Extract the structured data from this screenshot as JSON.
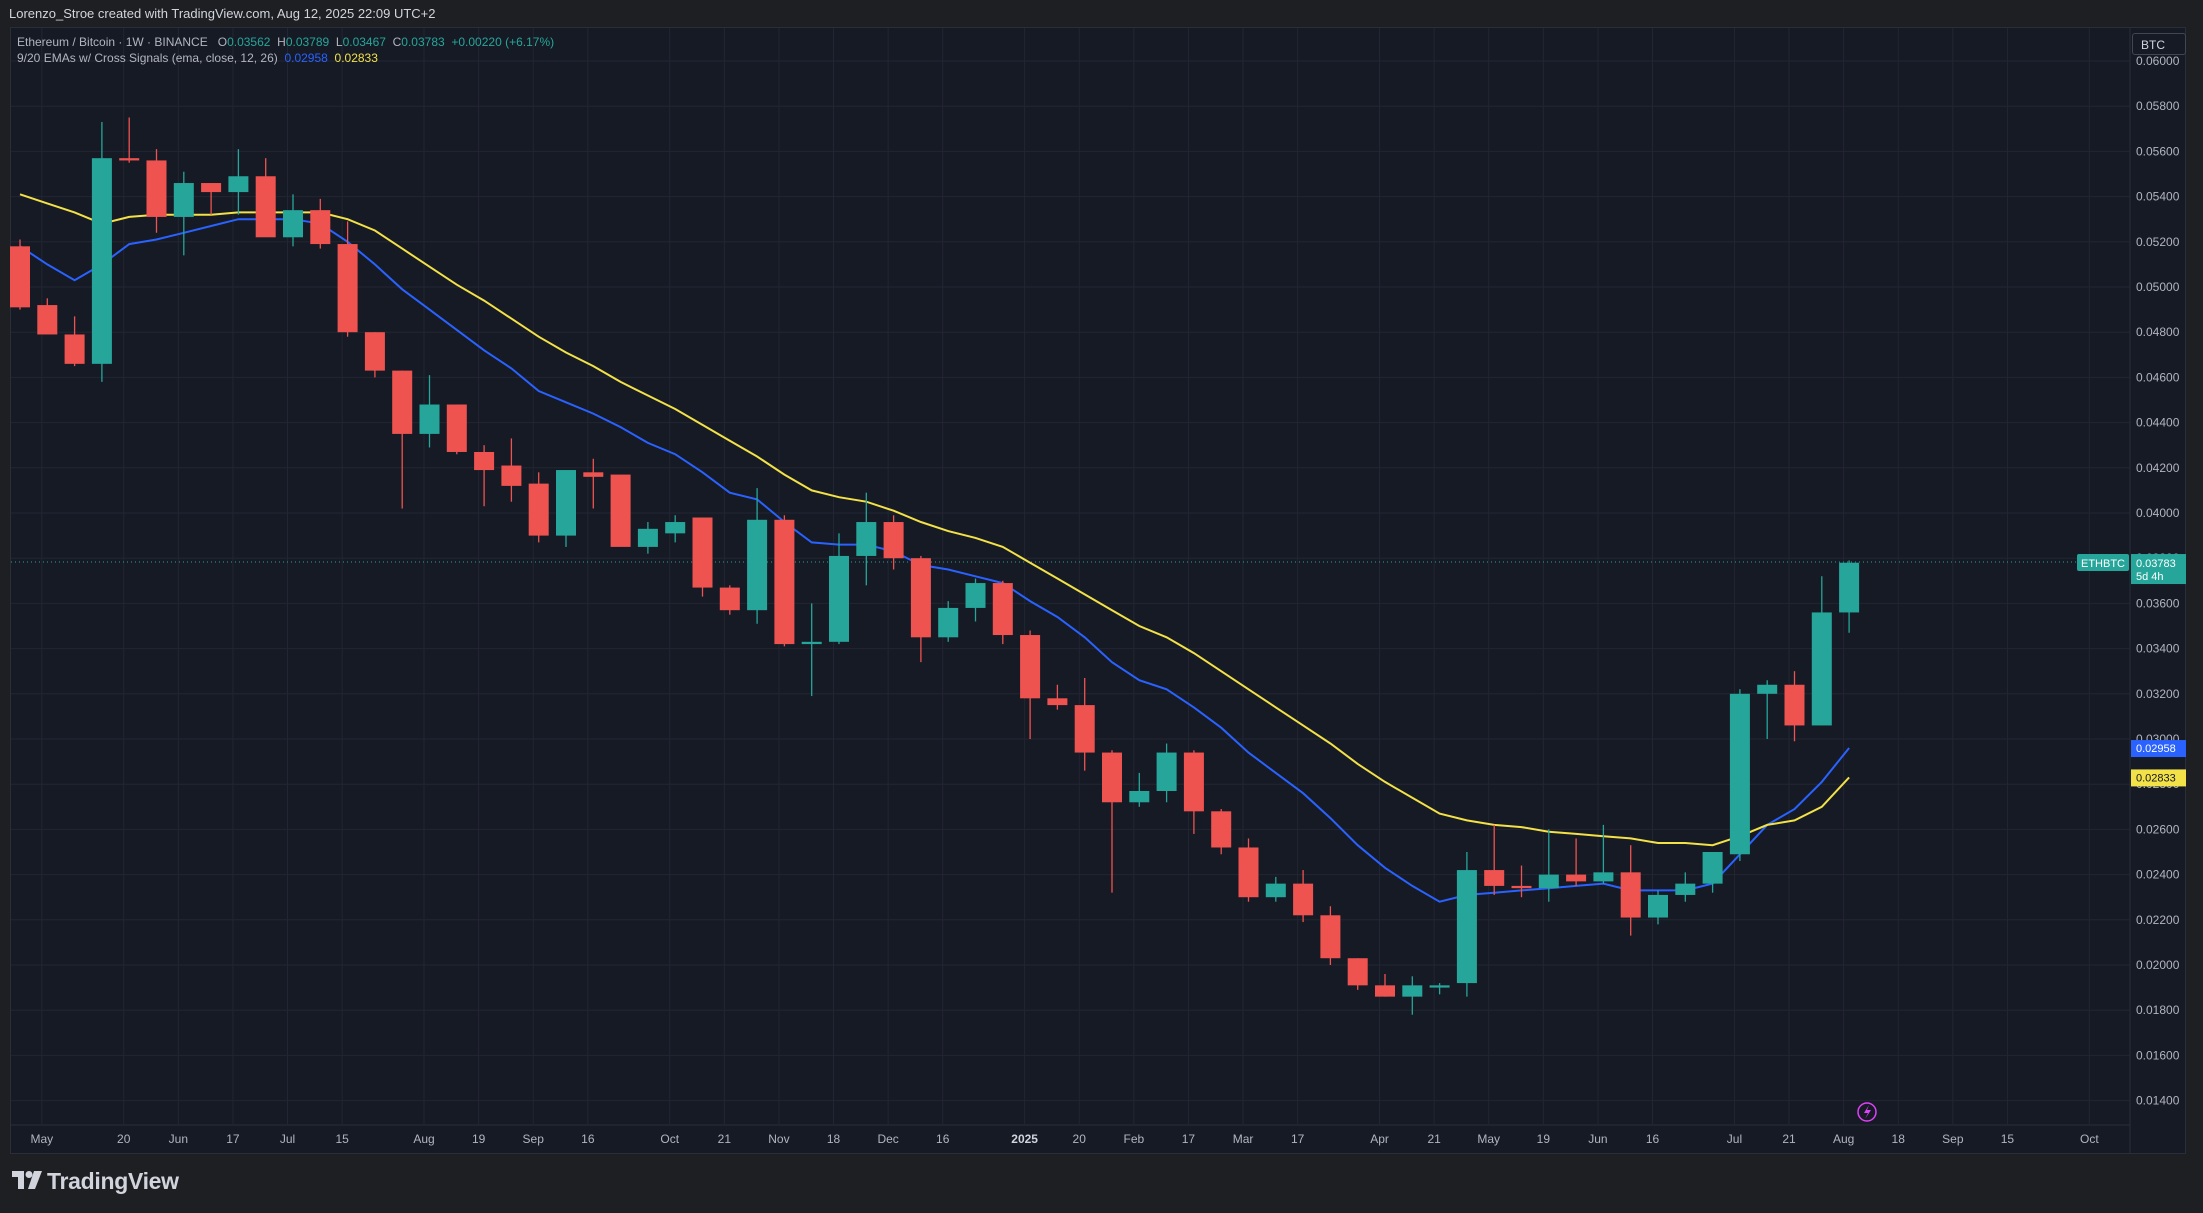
{
  "header": {
    "caption": "Lorenzo_Stroe created with TradingView.com, Aug 12, 2025 22:09 UTC+2"
  },
  "legend": {
    "symbol": "Ethereum / Bitcoin · 1W · BINANCE",
    "o_label": "O",
    "o_value": "0.03562",
    "h_label": "H",
    "h_value": "0.03789",
    "l_label": "L",
    "l_value": "0.03467",
    "c_label": "C",
    "c_value": "0.03783",
    "change": "+0.00220 (+6.17%)",
    "indicator": "9/20 EMAs w/ Cross Signals (ema, close, 12, 26)",
    "ema_fast_value": "0.02958",
    "ema_slow_value": "0.02833"
  },
  "currency_button": "BTC",
  "price_tags": {
    "symbol_tag": "ETHBTC",
    "last_price": "0.03783",
    "countdown": "5d 4h",
    "ema_fast": "0.02958",
    "ema_slow": "0.02833"
  },
  "footer": {
    "brand": "TradingView"
  },
  "colors": {
    "background": "#161a25",
    "up": "#26a69a",
    "down": "#ef5350",
    "ema_fast": "#2962ff",
    "ema_slow": "#f2e147",
    "grid": "#232632",
    "axis_text": "#b2b5be",
    "logo_circle": "#e040fb"
  },
  "chart_data": {
    "type": "candlestick",
    "title": "Ethereum / Bitcoin · 1W · BINANCE",
    "timeframe": "1W",
    "ylim": [
      0.014,
      0.061
    ],
    "y_ticks": [
      "0.06000",
      "0.05800",
      "0.05600",
      "0.05400",
      "0.05200",
      "0.05000",
      "0.04800",
      "0.04600",
      "0.04400",
      "0.04200",
      "0.04000",
      "0.03800",
      "0.03600",
      "0.03400",
      "0.03200",
      "0.03000",
      "0.02800",
      "0.02600",
      "0.02400",
      "0.02200",
      "0.02000",
      "0.01800",
      "0.01600",
      "0.01400"
    ],
    "x_ticks": [
      {
        "label": "May",
        "bar": 0.8,
        "bold": false
      },
      {
        "label": "20",
        "bar": 3.8,
        "bold": false
      },
      {
        "label": "Jun",
        "bar": 5.8,
        "bold": false
      },
      {
        "label": "17",
        "bar": 7.8,
        "bold": false
      },
      {
        "label": "Jul",
        "bar": 9.8,
        "bold": false
      },
      {
        "label": "15",
        "bar": 11.8,
        "bold": false
      },
      {
        "label": "Aug",
        "bar": 14.8,
        "bold": false
      },
      {
        "label": "19",
        "bar": 16.8,
        "bold": false
      },
      {
        "label": "Sep",
        "bar": 18.8,
        "bold": false
      },
      {
        "label": "16",
        "bar": 20.8,
        "bold": false
      },
      {
        "label": "Oct",
        "bar": 23.8,
        "bold": false
      },
      {
        "label": "21",
        "bar": 25.8,
        "bold": false
      },
      {
        "label": "Nov",
        "bar": 27.8,
        "bold": false
      },
      {
        "label": "18",
        "bar": 29.8,
        "bold": false
      },
      {
        "label": "Dec",
        "bar": 31.8,
        "bold": false
      },
      {
        "label": "16",
        "bar": 33.8,
        "bold": false
      },
      {
        "label": "2025",
        "bar": 36.8,
        "bold": true
      },
      {
        "label": "20",
        "bar": 38.8,
        "bold": false
      },
      {
        "label": "Feb",
        "bar": 40.8,
        "bold": false
      },
      {
        "label": "17",
        "bar": 42.8,
        "bold": false
      },
      {
        "label": "Mar",
        "bar": 44.8,
        "bold": false
      },
      {
        "label": "17",
        "bar": 46.8,
        "bold": false
      },
      {
        "label": "Apr",
        "bar": 49.8,
        "bold": false
      },
      {
        "label": "21",
        "bar": 51.8,
        "bold": false
      },
      {
        "label": "May",
        "bar": 53.8,
        "bold": false
      },
      {
        "label": "19",
        "bar": 55.8,
        "bold": false
      },
      {
        "label": "Jun",
        "bar": 57.8,
        "bold": false
      },
      {
        "label": "16",
        "bar": 59.8,
        "bold": false
      },
      {
        "label": "Jul",
        "bar": 62.8,
        "bold": false
      },
      {
        "label": "21",
        "bar": 64.8,
        "bold": false
      },
      {
        "label": "Aug",
        "bar": 66.8,
        "bold": false
      },
      {
        "label": "18",
        "bar": 68.8,
        "bold": false
      },
      {
        "label": "Sep",
        "bar": 70.8,
        "bold": false
      },
      {
        "label": "15",
        "bar": 72.8,
        "bold": false
      },
      {
        "label": "Oct",
        "bar": 75.8,
        "bold": false
      }
    ],
    "ohlc": [
      [
        0.0518,
        0.0521,
        0.049,
        0.0491
      ],
      [
        0.0492,
        0.0495,
        0.0481,
        0.0479
      ],
      [
        0.0479,
        0.0487,
        0.0465,
        0.0466
      ],
      [
        0.0466,
        0.0573,
        0.0458,
        0.0557
      ],
      [
        0.0557,
        0.0575,
        0.0555,
        0.0556
      ],
      [
        0.0556,
        0.0561,
        0.0524,
        0.0531
      ],
      [
        0.0531,
        0.0551,
        0.0514,
        0.0546
      ],
      [
        0.0546,
        0.0546,
        0.0532,
        0.0542
      ],
      [
        0.0542,
        0.0561,
        0.0532,
        0.0549
      ],
      [
        0.0549,
        0.0557,
        0.0524,
        0.0522
      ],
      [
        0.0522,
        0.0541,
        0.0518,
        0.0534
      ],
      [
        0.0534,
        0.0539,
        0.0517,
        0.0519
      ],
      [
        0.0519,
        0.0529,
        0.0478,
        0.048
      ],
      [
        0.048,
        0.048,
        0.046,
        0.0463
      ],
      [
        0.0463,
        0.0463,
        0.0402,
        0.0435
      ],
      [
        0.0435,
        0.0461,
        0.0429,
        0.0448
      ],
      [
        0.0448,
        0.0448,
        0.0426,
        0.0427
      ],
      [
        0.0427,
        0.043,
        0.0403,
        0.0419
      ],
      [
        0.0421,
        0.0433,
        0.0405,
        0.0412
      ],
      [
        0.0413,
        0.0418,
        0.0387,
        0.039
      ],
      [
        0.039,
        0.0419,
        0.0385,
        0.0419
      ],
      [
        0.0418,
        0.0424,
        0.0402,
        0.0416
      ],
      [
        0.0417,
        0.0415,
        0.0388,
        0.0385
      ],
      [
        0.0385,
        0.0396,
        0.0382,
        0.0393
      ],
      [
        0.0391,
        0.0399,
        0.0387,
        0.0396
      ],
      [
        0.0398,
        0.0398,
        0.0363,
        0.0367
      ],
      [
        0.0367,
        0.0368,
        0.0355,
        0.0357
      ],
      [
        0.0357,
        0.0411,
        0.0351,
        0.0397
      ],
      [
        0.0397,
        0.0399,
        0.0341,
        0.0342
      ],
      [
        0.0342,
        0.036,
        0.0319,
        0.0343
      ],
      [
        0.0343,
        0.0391,
        0.0342,
        0.0381
      ],
      [
        0.0381,
        0.0409,
        0.0368,
        0.0396
      ],
      [
        0.0396,
        0.0399,
        0.0375,
        0.038
      ],
      [
        0.038,
        0.0381,
        0.0334,
        0.0345
      ],
      [
        0.0345,
        0.0361,
        0.0343,
        0.0358
      ],
      [
        0.0358,
        0.0371,
        0.0352,
        0.0369
      ],
      [
        0.0369,
        0.037,
        0.0342,
        0.0346
      ],
      [
        0.0346,
        0.0348,
        0.03,
        0.0318
      ],
      [
        0.0318,
        0.0324,
        0.0313,
        0.0315
      ],
      [
        0.0315,
        0.0327,
        0.0286,
        0.0294
      ],
      [
        0.0294,
        0.0295,
        0.0232,
        0.0272
      ],
      [
        0.0272,
        0.0285,
        0.027,
        0.0277
      ],
      [
        0.0277,
        0.0298,
        0.0272,
        0.0294
      ],
      [
        0.0294,
        0.0295,
        0.0258,
        0.0268
      ],
      [
        0.0268,
        0.0269,
        0.0249,
        0.0252
      ],
      [
        0.0252,
        0.0256,
        0.0228,
        0.023
      ],
      [
        0.023,
        0.0239,
        0.0228,
        0.0236
      ],
      [
        0.0236,
        0.0242,
        0.0219,
        0.0222
      ],
      [
        0.0222,
        0.0226,
        0.02,
        0.0203
      ],
      [
        0.0203,
        0.0203,
        0.0189,
        0.0191
      ],
      [
        0.0191,
        0.0196,
        0.0186,
        0.0186
      ],
      [
        0.0186,
        0.0195,
        0.0178,
        0.0191
      ],
      [
        0.019,
        0.0192,
        0.0187,
        0.0191
      ],
      [
        0.0192,
        0.025,
        0.0186,
        0.0242
      ],
      [
        0.0242,
        0.0262,
        0.0231,
        0.0235
      ],
      [
        0.0235,
        0.0244,
        0.023,
        0.0234
      ],
      [
        0.0234,
        0.026,
        0.0228,
        0.024
      ],
      [
        0.024,
        0.0256,
        0.0235,
        0.0237
      ],
      [
        0.0237,
        0.0262,
        0.0236,
        0.0241
      ],
      [
        0.0241,
        0.0253,
        0.0213,
        0.0221
      ],
      [
        0.0221,
        0.0233,
        0.0218,
        0.0231
      ],
      [
        0.0231,
        0.0241,
        0.0228,
        0.0236
      ],
      [
        0.0236,
        0.025,
        0.0232,
        0.025
      ],
      [
        0.0249,
        0.0322,
        0.0246,
        0.032
      ],
      [
        0.032,
        0.0326,
        0.03,
        0.0324
      ],
      [
        0.0324,
        0.033,
        0.0299,
        0.0306
      ],
      [
        0.0306,
        0.0372,
        0.0306,
        0.0356
      ],
      [
        0.0356,
        0.0379,
        0.0347,
        0.0378
      ]
    ],
    "series": [
      {
        "values": [
          0.0518,
          0.051,
          0.0503,
          0.051,
          0.0519,
          0.0521,
          0.0524,
          0.0527,
          0.053,
          0.053,
          0.053,
          0.0528,
          0.052,
          0.051,
          0.0499,
          0.049,
          0.0481,
          0.0472,
          0.0464,
          0.0454,
          0.0449,
          0.0444,
          0.0438,
          0.0431,
          0.0426,
          0.0418,
          0.0409,
          0.0406,
          0.0396,
          0.0387,
          0.0386,
          0.0386,
          0.0383,
          0.0377,
          0.0375,
          0.0372,
          0.0369,
          0.0361,
          0.0354,
          0.0345,
          0.0334,
          0.0326,
          0.0322,
          0.0314,
          0.0305,
          0.0294,
          0.0285,
          0.0276,
          0.0265,
          0.0253,
          0.0243,
          0.0235,
          0.0228,
          0.0231,
          0.0232,
          0.0233,
          0.0234,
          0.0235,
          0.0236,
          0.0233,
          0.0233,
          0.0233,
          0.0236,
          0.0249,
          0.0262,
          0.0269,
          0.0281,
          0.0296
        ],
        "color": "#2962ff"
      },
      {
        "values": [
          0.0541,
          0.0537,
          0.0533,
          0.0528,
          0.0531,
          0.0532,
          0.0532,
          0.0532,
          0.0533,
          0.0533,
          0.0533,
          0.0533,
          0.053,
          0.0525,
          0.0517,
          0.0509,
          0.0501,
          0.0494,
          0.0486,
          0.0478,
          0.0471,
          0.0465,
          0.0458,
          0.0452,
          0.0446,
          0.0439,
          0.0432,
          0.0425,
          0.0417,
          0.041,
          0.0407,
          0.0405,
          0.0401,
          0.0396,
          0.0392,
          0.0389,
          0.0385,
          0.0378,
          0.0371,
          0.0364,
          0.0357,
          0.035,
          0.0345,
          0.0338,
          0.033,
          0.0322,
          0.0314,
          0.0306,
          0.0298,
          0.0289,
          0.0281,
          0.0274,
          0.0267,
          0.0264,
          0.0262,
          0.0261,
          0.0259,
          0.0258,
          0.0257,
          0.0256,
          0.0254,
          0.0254,
          0.0253,
          0.0257,
          0.0262,
          0.0264,
          0.027,
          0.0283
        ],
        "color": "#f2e147"
      }
    ],
    "last_price": 0.03783,
    "grid": true
  }
}
